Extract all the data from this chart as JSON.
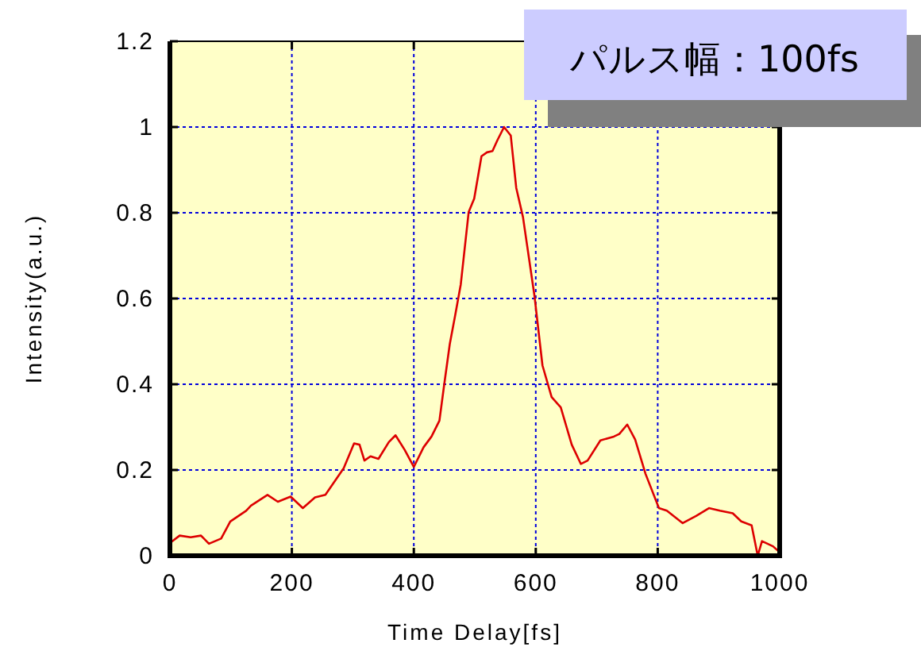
{
  "chart_data": {
    "type": "line",
    "xlabel": "Time Delay[fs]",
    "ylabel": "Intensity(a.u.)",
    "annotations": [
      "パルス幅：100fs"
    ],
    "xlim": [
      0,
      1000
    ],
    "xticks": [
      0,
      200,
      400,
      600,
      800,
      1000
    ],
    "ylim": [
      0,
      1.2
    ],
    "yticks": [
      0,
      0.2,
      0.4,
      0.6,
      0.8,
      1,
      1.2
    ],
    "grid": true,
    "line_style": "solid",
    "marker": "none",
    "series": [
      {
        "color": "#dd0000",
        "x": [
          3,
          16,
          34,
          51,
          64,
          84,
          99,
          125,
          133,
          160,
          177,
          198,
          218,
          238,
          255,
          285,
          302,
          311,
          319,
          329,
          342,
          359,
          370,
          385,
          400,
          416,
          429,
          442,
          450,
          459,
          468,
          477,
          490,
          499,
          511,
          520,
          529,
          537,
          548,
          559,
          568,
          579,
          598,
          611,
          626,
          641,
          659,
          674,
          685,
          706,
          728,
          737,
          750,
          763,
          780,
          802,
          815,
          841,
          863,
          884,
          902,
          923,
          937,
          954,
          964,
          971,
          989,
          997
        ],
        "values": [
          0.033,
          0.047,
          0.043,
          0.047,
          0.028,
          0.04,
          0.08,
          0.105,
          0.117,
          0.142,
          0.126,
          0.138,
          0.111,
          0.136,
          0.142,
          0.204,
          0.262,
          0.259,
          0.222,
          0.232,
          0.226,
          0.265,
          0.281,
          0.247,
          0.207,
          0.253,
          0.278,
          0.315,
          0.401,
          0.494,
          0.562,
          0.633,
          0.802,
          0.833,
          0.932,
          0.941,
          0.944,
          0.969,
          1.0,
          0.98,
          0.858,
          0.79,
          0.605,
          0.444,
          0.37,
          0.346,
          0.259,
          0.214,
          0.222,
          0.269,
          0.278,
          0.284,
          0.306,
          0.271,
          0.191,
          0.111,
          0.105,
          0.076,
          0.093,
          0.111,
          0.105,
          0.099,
          0.08,
          0.071,
          0.0,
          0.034,
          0.022,
          0.012
        ]
      }
    ]
  }
}
